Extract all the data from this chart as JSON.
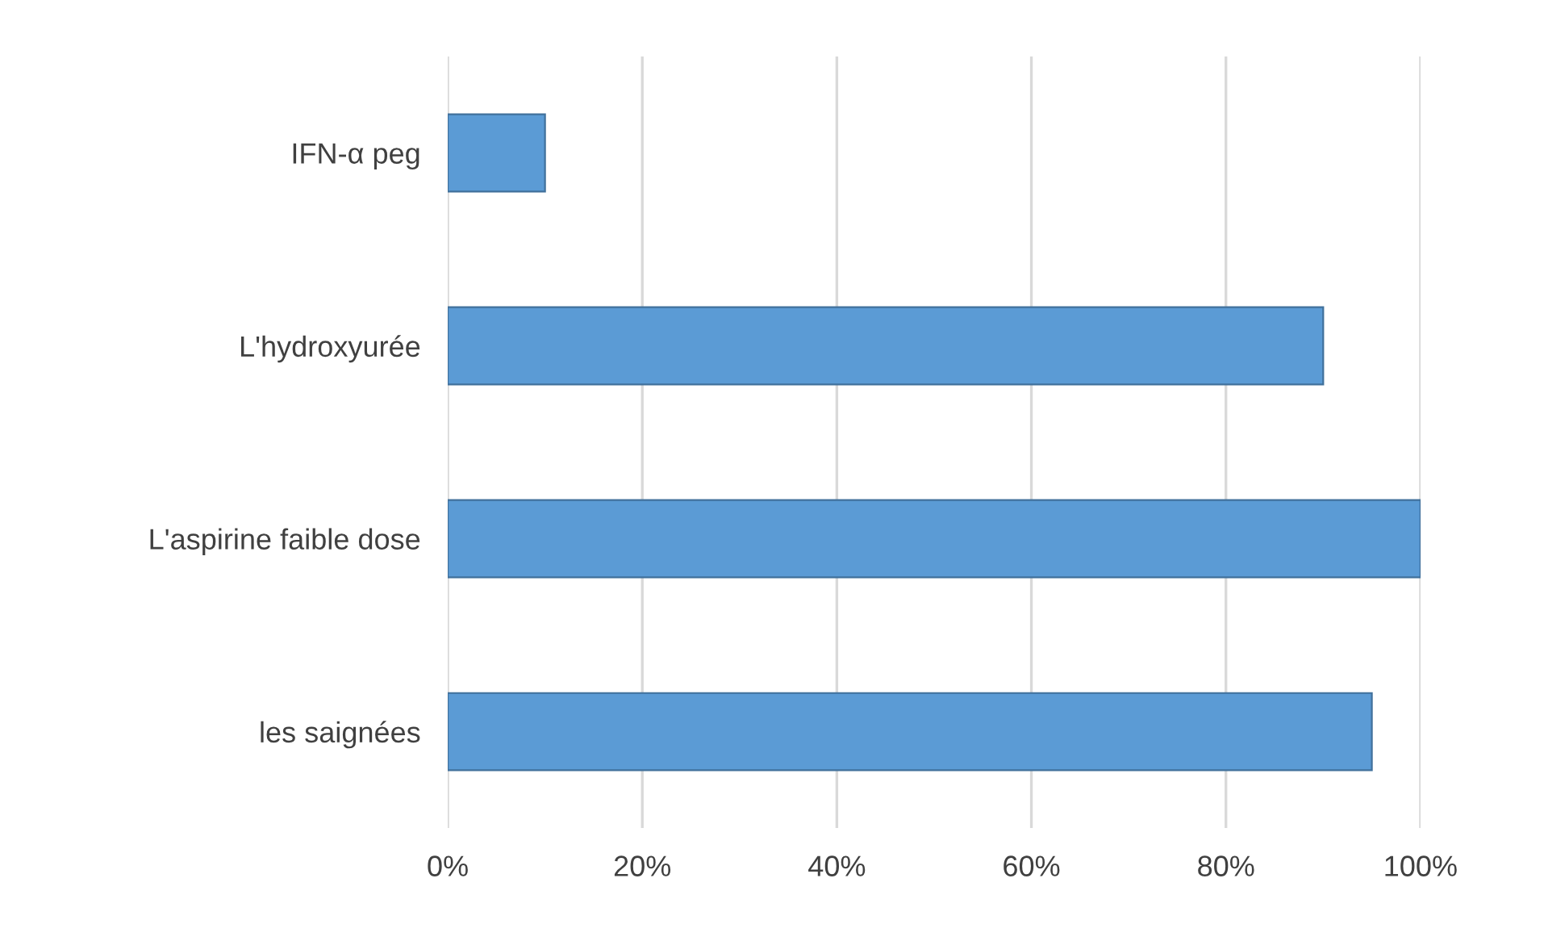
{
  "chart_data": {
    "type": "bar",
    "orientation": "horizontal",
    "categories": [
      "IFN-α peg",
      "L'hydroxyurée",
      "L'aspirine faible dose",
      "les saignées"
    ],
    "values": [
      10,
      90,
      100,
      95
    ],
    "color": "#5b9bd5",
    "xlim": [
      0,
      100
    ],
    "xticks": [
      {
        "value": 0,
        "label": "0%"
      },
      {
        "value": 20,
        "label": "20%"
      },
      {
        "value": 40,
        "label": "40%"
      },
      {
        "value": 60,
        "label": "60%"
      },
      {
        "value": 80,
        "label": "80%"
      },
      {
        "value": 100,
        "label": "100%"
      }
    ],
    "grid": "x"
  }
}
